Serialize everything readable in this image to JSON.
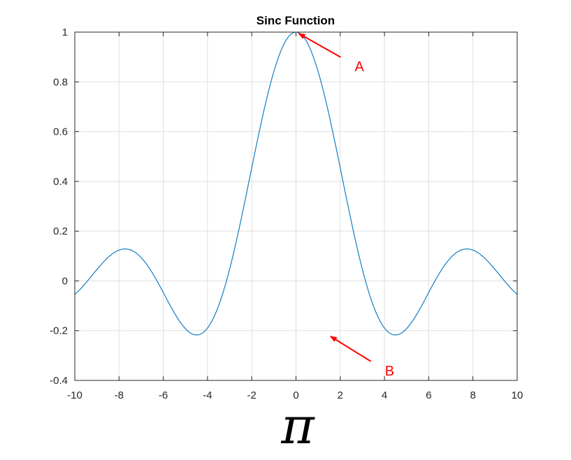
{
  "chart_data": {
    "type": "line",
    "title": "Sinc Function",
    "xlabel": "π",
    "ylabel": "",
    "xlim": [
      -10,
      10
    ],
    "ylim": [
      -0.4,
      1
    ],
    "xticks": [
      -10,
      -8,
      -6,
      -4,
      -2,
      0,
      2,
      4,
      6,
      8,
      10
    ],
    "xtick_labels": [
      "-10",
      "-8",
      "-6",
      "-4",
      "-2",
      "0",
      "2",
      "4",
      "6",
      "8",
      "10"
    ],
    "yticks": [
      -0.4,
      -0.2,
      0,
      0.2,
      0.4,
      0.6,
      0.8,
      1
    ],
    "ytick_labels": [
      "-0.4",
      "-0.2",
      "0",
      "0.2",
      "0.4",
      "0.6",
      "0.8",
      "1"
    ],
    "grid": true,
    "series": [
      {
        "function": "sin(x)/x",
        "x_range": [
          -10,
          10
        ],
        "color": "#0072BD"
      }
    ],
    "annotations": [
      {
        "label": "A",
        "x": 0,
        "y": 1,
        "color": "#ff0000"
      },
      {
        "label": "B",
        "x": 1.43,
        "y": -0.217,
        "color": "#ff0000"
      }
    ]
  }
}
